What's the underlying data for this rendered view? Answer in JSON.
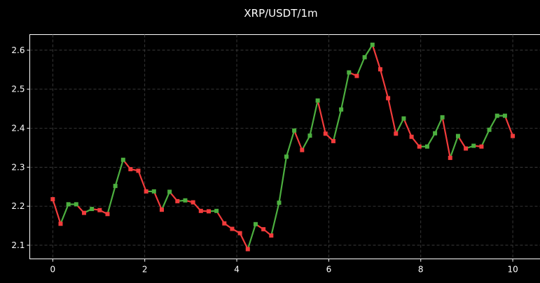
{
  "chart_data": {
    "type": "line",
    "title": "XRP/USDT/1m",
    "xlabel": "",
    "ylabel": "",
    "xlim": [
      -0.5,
      10.6
    ],
    "ylim": [
      2.065,
      2.64
    ],
    "xticks": [
      0,
      2,
      4,
      6,
      8,
      10
    ],
    "xtick_labels": [
      "0",
      "2",
      "4",
      "6",
      "8",
      "10"
    ],
    "yticks": [
      2.1,
      2.2,
      2.3,
      2.4,
      2.5,
      2.6
    ],
    "ytick_labels": [
      "2.1",
      "2.2",
      "2.3",
      "2.4",
      "2.5",
      "2.6"
    ],
    "grid": true,
    "colors": {
      "up": "#4caf3f",
      "down": "#f23b3b",
      "background": "#000000",
      "text": "#ffffff"
    },
    "series": [
      {
        "x": [
          0.0,
          0.17,
          0.34,
          0.51,
          0.68,
          0.85,
          1.02,
          1.19,
          1.36,
          1.53,
          1.69,
          1.86,
          2.03,
          2.2,
          2.37,
          2.54,
          2.71,
          2.88,
          3.05,
          3.22,
          3.39,
          3.56,
          3.73,
          3.9,
          4.07,
          4.24,
          4.41,
          4.58,
          4.75,
          4.92,
          5.08,
          5.25,
          5.42,
          5.59,
          5.76,
          5.93,
          6.1,
          6.27,
          6.44,
          6.61,
          6.78,
          6.95,
          7.12,
          7.29,
          7.46,
          7.63,
          7.8,
          7.97,
          8.14,
          8.31,
          8.47,
          8.64,
          8.81,
          8.98,
          9.15,
          9.32,
          9.49,
          9.66,
          9.83,
          10.0
        ],
        "values": [
          2.218,
          2.155,
          2.205,
          2.205,
          2.183,
          2.193,
          2.19,
          2.18,
          2.252,
          2.319,
          2.295,
          2.291,
          2.238,
          2.238,
          2.191,
          2.237,
          2.213,
          2.215,
          2.21,
          2.188,
          2.187,
          2.188,
          2.156,
          2.142,
          2.131,
          2.09,
          2.154,
          2.141,
          2.125,
          2.209,
          2.327,
          2.394,
          2.344,
          2.381,
          2.471,
          2.386,
          2.367,
          2.448,
          2.543,
          2.534,
          2.582,
          2.614,
          2.551,
          2.477,
          2.386,
          2.425,
          2.378,
          2.353,
          2.353,
          2.387,
          2.428,
          2.324,
          2.38,
          2.348,
          2.355,
          2.353,
          2.396,
          2.432,
          2.432,
          2.38
        ]
      }
    ]
  }
}
